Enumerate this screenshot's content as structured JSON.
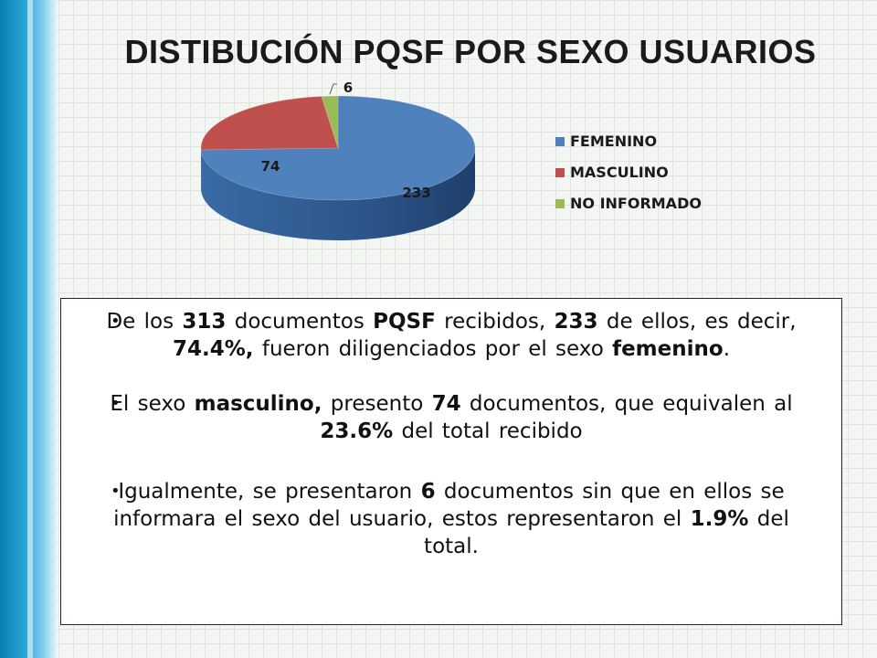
{
  "title": "DISTIBUCIÓN PQSF POR SEXO USUARIOS",
  "chart_data": {
    "type": "pie",
    "categories": [
      "FEMENINO",
      "MASCULINO",
      "NO INFORMADO"
    ],
    "values": [
      233,
      74,
      6
    ],
    "colors": [
      "#4f81bd",
      "#c0504d",
      "#9bbb59"
    ],
    "legend_position": "right",
    "style": "3d"
  },
  "bullets": [
    [
      {
        "t": "De los ",
        "b": false
      },
      {
        "t": "313",
        "b": true
      },
      {
        "t": " documentos ",
        "b": false
      },
      {
        "t": "PQSF",
        "b": true
      },
      {
        "t": " recibidos, ",
        "b": false
      },
      {
        "t": "233",
        "b": true
      },
      {
        "t": " de ellos, es decir, ",
        "b": false
      },
      {
        "t": "74.4%,",
        "b": true
      },
      {
        "t": " fueron  diligenciados por el sexo ",
        "b": false
      },
      {
        "t": "femenino",
        "b": true
      },
      {
        "t": ".",
        "b": false
      }
    ],
    [
      {
        "t": "El sexo ",
        "b": false
      },
      {
        "t": "masculino,",
        "b": true
      },
      {
        "t": " presento ",
        "b": false
      },
      {
        "t": "74",
        "b": true
      },
      {
        "t": " documentos, que equivalen al  ",
        "b": false
      },
      {
        "t": "23.6%",
        "b": true
      },
      {
        "t": " del total recibido",
        "b": false
      }
    ],
    [
      {
        "t": "Igualmente, se presentaron ",
        "b": false
      },
      {
        "t": "6",
        "b": true
      },
      {
        "t": " documentos sin que en ellos se informara el sexo del usuario, estos representaron el ",
        "b": false
      },
      {
        "t": "1.9%",
        "b": true
      },
      {
        "t": " del total.",
        "b": false
      }
    ]
  ]
}
